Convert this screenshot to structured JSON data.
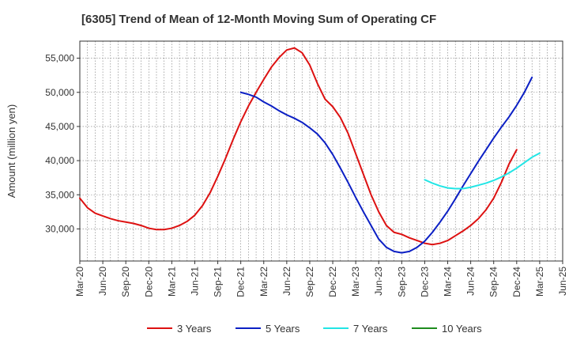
{
  "chart_data": {
    "type": "line",
    "title": "[6305]  Trend of Mean of 12-Month Moving Sum of Operating CF",
    "xlabel": "",
    "ylabel": "Amount (million yen)",
    "ylim": [
      25300,
      57500
    ],
    "yticks": [
      30000,
      35000,
      40000,
      45000,
      50000,
      55000
    ],
    "ytick_labels": [
      "30,000",
      "35,000",
      "40,000",
      "45,000",
      "50,000",
      "55,000"
    ],
    "x_start": "Mar-20",
    "x_end": "Jun-25",
    "xticks": [
      "Mar-20",
      "Jun-20",
      "Sep-20",
      "Dec-20",
      "Mar-21",
      "Jun-21",
      "Sep-21",
      "Dec-21",
      "Mar-22",
      "Jun-22",
      "Sep-22",
      "Dec-22",
      "Mar-23",
      "Jun-23",
      "Sep-23",
      "Dec-23",
      "Mar-24",
      "Jun-24",
      "Sep-24",
      "Dec-24",
      "Mar-25",
      "Jun-25"
    ],
    "grid": true,
    "series": [
      {
        "name": "3 Years",
        "color": "#dd1111",
        "start": "Mar-20",
        "values": [
          34500,
          33100,
          32300,
          31900,
          31500,
          31200,
          31000,
          30800,
          30500,
          30100,
          29900,
          29900,
          30100,
          30500,
          31100,
          32000,
          33400,
          35300,
          37700,
          40300,
          43100,
          45700,
          48000,
          50000,
          51900,
          53700,
          55100,
          56200,
          56500,
          55800,
          54000,
          51300,
          49000,
          47900,
          46300,
          44000,
          41000,
          38000,
          35000,
          32500,
          30500,
          29500,
          29200,
          28700,
          28300,
          27900,
          27700,
          27900,
          28300,
          29000,
          29700,
          30500,
          31500,
          32800,
          34500,
          36800,
          39500,
          41600
        ]
      },
      {
        "name": "5 Years",
        "color": "#0b1fc4",
        "start": "Dec-21",
        "values": [
          50000,
          49700,
          49300,
          48600,
          48000,
          47300,
          46700,
          46200,
          45600,
          44800,
          43900,
          42600,
          40900,
          38900,
          36800,
          34600,
          32500,
          30500,
          28500,
          27300,
          26700,
          26500,
          26700,
          27300,
          28200,
          29500,
          31000,
          32600,
          34400,
          36300,
          38100,
          39900,
          41600,
          43300,
          44900,
          46400,
          48100,
          50000,
          52200
        ]
      },
      {
        "name": "7 Years",
        "color": "#22e5e5",
        "start": "Dec-23",
        "values": [
          37200,
          36700,
          36300,
          36000,
          35900,
          35900,
          36100,
          36400,
          36700,
          37100,
          37600,
          38200,
          38900,
          39700,
          40500,
          41100
        ]
      },
      {
        "name": "10 Years",
        "color": "#1e8c1e",
        "start": "Mar-25",
        "values": []
      }
    ]
  }
}
